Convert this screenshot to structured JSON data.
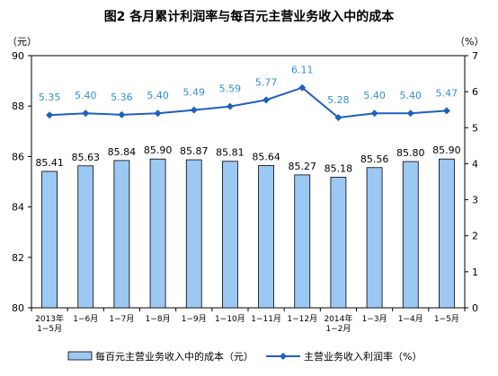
{
  "chart_data": {
    "type": "bar",
    "title": "图2  各月累计利润率与每百元主营业务收入中的成本",
    "left_unit": "（元）",
    "right_unit": "（%）",
    "categories": [
      [
        "2013年",
        "1−5月"
      ],
      [
        "1−6月"
      ],
      [
        "1−7月"
      ],
      [
        "1−8月"
      ],
      [
        "1−9月"
      ],
      [
        "1−10月"
      ],
      [
        "1−11月"
      ],
      [
        "1−12月"
      ],
      [
        "2014年",
        "1−2月"
      ],
      [
        "1−3月"
      ],
      [
        "1−4月"
      ],
      [
        "1−5月"
      ]
    ],
    "y_left": {
      "min": 80,
      "max": 90,
      "ticks": [
        "80",
        "82",
        "84",
        "86",
        "88",
        "90"
      ]
    },
    "y_right": {
      "min": 0,
      "max": 7,
      "ticks": [
        "0",
        "1",
        "2",
        "3",
        "4",
        "5",
        "6",
        "7"
      ]
    },
    "series": [
      {
        "name": "每百元主营业务收入中的成本（元）",
        "type": "bar",
        "axis": "left",
        "values": [
          85.41,
          85.63,
          85.84,
          85.9,
          85.87,
          85.81,
          85.64,
          85.27,
          85.18,
          85.56,
          85.8,
          85.9
        ],
        "labels": [
          "85.41",
          "85.63",
          "85.84",
          "85.90",
          "85.87",
          "85.81",
          "85.64",
          "85.27",
          "85.18",
          "85.56",
          "85.80",
          "85.90"
        ],
        "color": "#9cc9f3",
        "edge_color": "#000000"
      },
      {
        "name": "主营业务收入利润率（%）",
        "type": "line",
        "axis": "right",
        "values": [
          5.35,
          5.4,
          5.36,
          5.4,
          5.49,
          5.59,
          5.77,
          6.11,
          5.28,
          5.4,
          5.4,
          5.47
        ],
        "labels": [
          "5.35",
          "5.40",
          "5.36",
          "5.40",
          "5.49",
          "5.59",
          "5.77",
          "6.11",
          "5.28",
          "5.40",
          "5.40",
          "5.47"
        ],
        "color": "#1f5fbf",
        "label_color": "#2f8fd8"
      }
    ],
    "grid": false,
    "legend_position": "bottom"
  }
}
